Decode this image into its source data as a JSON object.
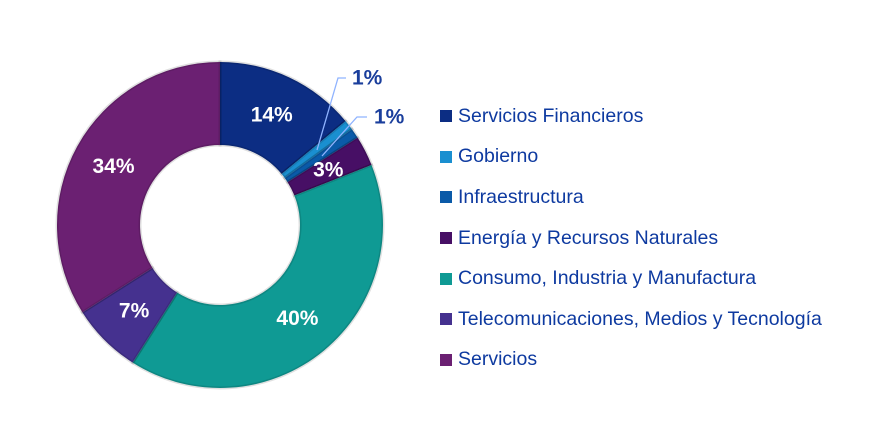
{
  "chart_data": {
    "type": "pie",
    "donut": true,
    "categories": [
      "Servicios Financieros",
      "Gobierno",
      "Infraestructura",
      "Energía y Recursos Naturales",
      "Consumo, Industria y Manufactura",
      "Telecomunicaciones, Medios y Tecnología",
      "Servicios"
    ],
    "values": [
      14,
      1,
      1,
      3,
      40,
      7,
      34
    ],
    "labels": [
      "14%",
      "1%",
      "1%",
      "3%",
      "40%",
      "7%",
      "34%"
    ],
    "colors": [
      "#0c2d83",
      "#1a8fd0",
      "#0a5aa8",
      "#470f65",
      "#0f9a94",
      "#45318f",
      "#6b2072"
    ],
    "legend_position": "right"
  }
}
